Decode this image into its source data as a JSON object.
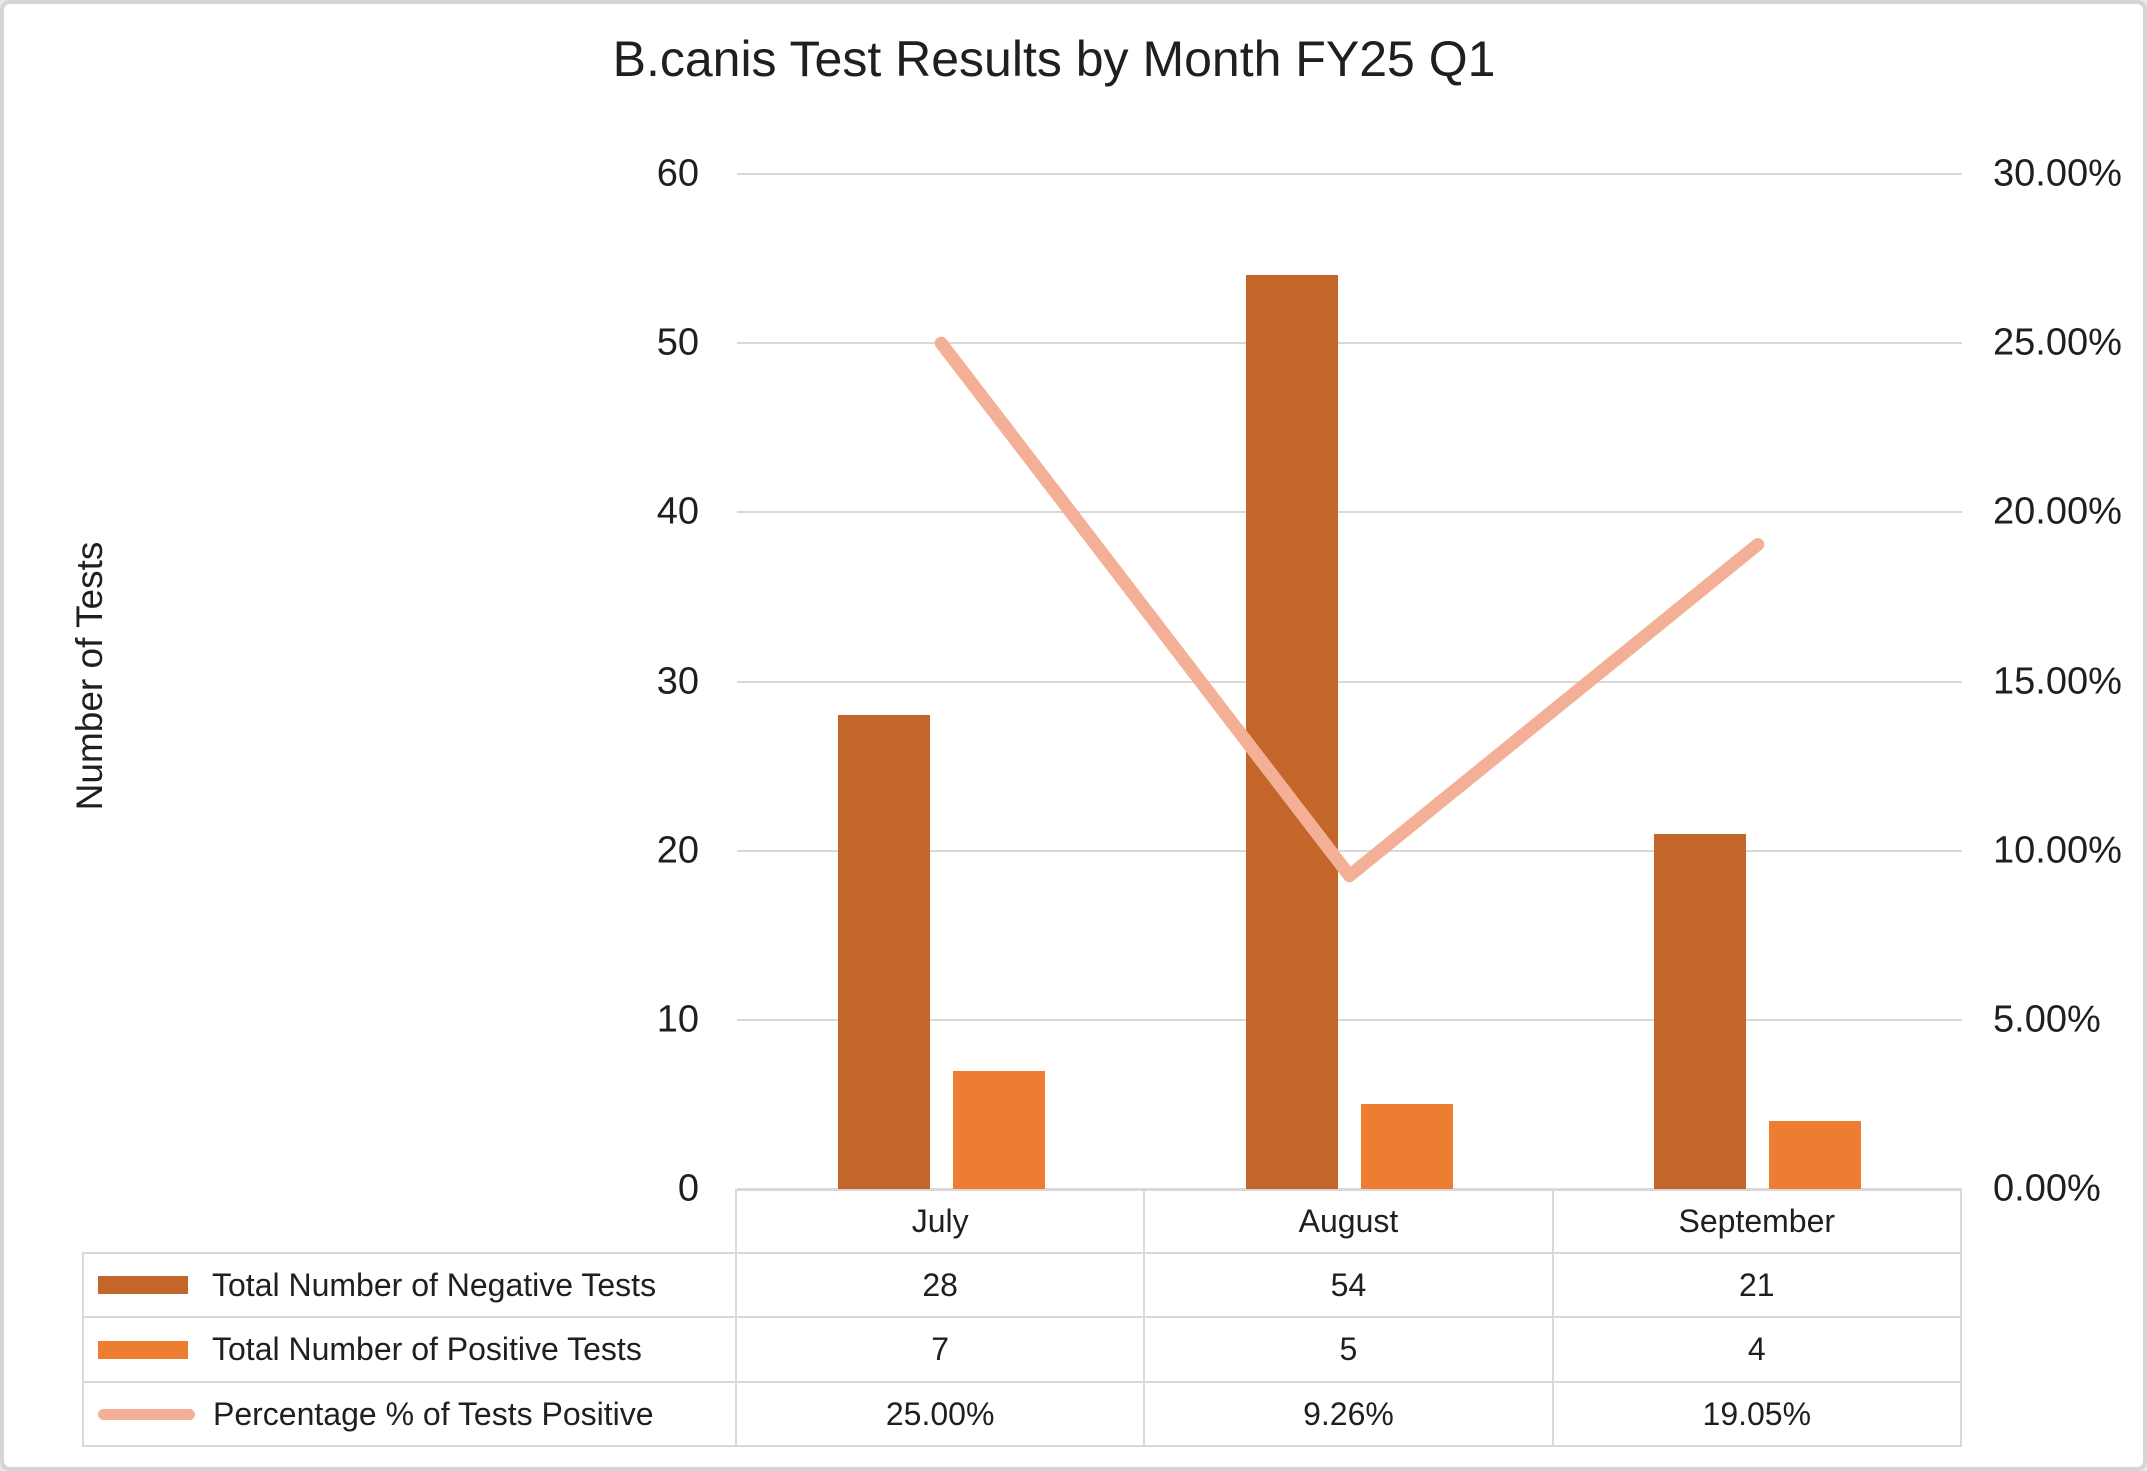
{
  "title": "B.canis Test Results by Month FY25 Q1",
  "left_axis_title": "Number of Tests",
  "chart_data": {
    "type": "combo-bar-line",
    "categories": [
      "July",
      "August",
      "September"
    ],
    "series": [
      {
        "name": "Total Number of Negative Tests",
        "short": "negative",
        "type": "bar",
        "axis": "left",
        "color": "#C4662A",
        "values": [
          28,
          54,
          21
        ],
        "display_values": [
          "28",
          "54",
          "21"
        ]
      },
      {
        "name": "Total Number of Positive Tests",
        "short": "positive",
        "type": "bar",
        "axis": "left",
        "color": "#ED7D31",
        "values": [
          7,
          5,
          4
        ],
        "display_values": [
          "7",
          "5",
          "4"
        ]
      },
      {
        "name": "Percentage % of Tests Positive",
        "short": "percentage",
        "type": "line",
        "axis": "right",
        "color": "#F4B096",
        "values": [
          25.0,
          9.26,
          19.05
        ],
        "display_values": [
          "25.00%",
          "9.26%",
          "19.05%"
        ]
      }
    ],
    "left_axis": {
      "title": "Number of Tests",
      "min": 0,
      "max": 60,
      "ticks": [
        "60",
        "50",
        "40",
        "30",
        "20",
        "10",
        "0"
      ]
    },
    "right_axis": {
      "min": 0,
      "max": 30,
      "ticks": [
        "30.00%",
        "25.00%",
        "20.00%",
        "15.00%",
        "10.00%",
        "5.00%",
        "0.00%"
      ]
    },
    "grid": true,
    "legend_position": "data-table-left-column"
  },
  "colors": {
    "negative_bar": "#C4662A",
    "positive_bar": "#ED7D31",
    "percentage_line": "#F4B096",
    "gridline": "#D9D9D9",
    "table_border": "#D9D9D9",
    "text": "#1f1f1f",
    "frame_border": "#D5D5D5",
    "background": "#FFFFFF"
  }
}
